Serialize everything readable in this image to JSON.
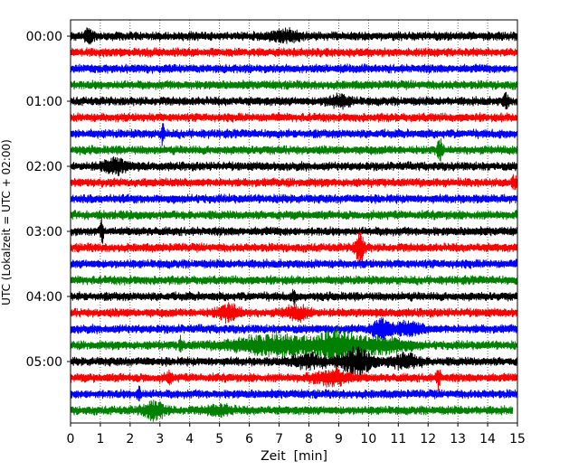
{
  "chart_data": {
    "type": "line",
    "chart_kind": "helicorder seismogram",
    "xlabel": "Zeit  [min]",
    "ylabel": "UTC (Lokalzeit = UTC + 02:00)",
    "xlim": [
      0,
      15
    ],
    "x_ticks": [
      0,
      1,
      2,
      3,
      4,
      5,
      6,
      7,
      8,
      9,
      10,
      11,
      12,
      13,
      14,
      15
    ],
    "x_grid": "dotted vertical at each minute",
    "row_interval_minutes": 15,
    "color_cycle": [
      "#000000",
      "#ff0000",
      "#0000ff",
      "#008000"
    ],
    "y_ticks": [
      {
        "label": "00:00",
        "row": 0
      },
      {
        "label": "01:00",
        "row": 4
      },
      {
        "label": "02:00",
        "row": 8
      },
      {
        "label": "03:00",
        "row": 12
      },
      {
        "label": "04:00",
        "row": 16
      },
      {
        "label": "05:00",
        "row": 20
      }
    ],
    "rows": [
      {
        "start": "00:00",
        "color": "#000000",
        "events": [
          {
            "t": 0.6,
            "amp": 0.45,
            "dur": 0.15
          },
          {
            "t": 7.2,
            "amp": 0.35,
            "dur": 0.5
          }
        ]
      },
      {
        "start": "00:15",
        "color": "#ff0000",
        "events": []
      },
      {
        "start": "00:30",
        "color": "#0000ff",
        "events": []
      },
      {
        "start": "00:45",
        "color": "#008000",
        "events": []
      },
      {
        "start": "01:00",
        "color": "#000000",
        "events": [
          {
            "t": 9.0,
            "amp": 0.35,
            "dur": 0.4
          },
          {
            "t": 14.6,
            "amp": 0.45,
            "dur": 0.1
          }
        ]
      },
      {
        "start": "01:15",
        "color": "#ff0000",
        "events": []
      },
      {
        "start": "01:30",
        "color": "#0000ff",
        "events": [
          {
            "t": 3.1,
            "amp": 0.8,
            "dur": 0.05
          }
        ]
      },
      {
        "start": "01:45",
        "color": "#008000",
        "events": [
          {
            "t": 12.4,
            "amp": 0.8,
            "dur": 0.08
          }
        ]
      },
      {
        "start": "02:00",
        "color": "#000000",
        "events": [
          {
            "t": 1.5,
            "amp": 0.5,
            "dur": 0.4
          }
        ]
      },
      {
        "start": "02:15",
        "color": "#ff0000",
        "events": [
          {
            "t": 14.9,
            "amp": 0.4,
            "dur": 0.1
          }
        ]
      },
      {
        "start": "02:30",
        "color": "#0000ff",
        "events": []
      },
      {
        "start": "02:45",
        "color": "#008000",
        "events": []
      },
      {
        "start": "03:00",
        "color": "#000000",
        "events": [
          {
            "t": 1.05,
            "amp": 1.0,
            "dur": 0.05
          }
        ]
      },
      {
        "start": "03:15",
        "color": "#ff0000",
        "events": [
          {
            "t": 9.7,
            "amp": 1.1,
            "dur": 0.15
          }
        ]
      },
      {
        "start": "03:30",
        "color": "#0000ff",
        "events": []
      },
      {
        "start": "03:45",
        "color": "#008000",
        "events": []
      },
      {
        "start": "04:00",
        "color": "#000000",
        "events": [
          {
            "t": 7.5,
            "amp": 0.5,
            "dur": 0.05
          }
        ]
      },
      {
        "start": "04:15",
        "color": "#ff0000",
        "events": [
          {
            "t": 5.3,
            "amp": 0.5,
            "dur": 0.4
          },
          {
            "t": 7.6,
            "amp": 0.45,
            "dur": 0.4
          }
        ]
      },
      {
        "start": "04:30",
        "color": "#0000ff",
        "events": [
          {
            "t": 10.4,
            "amp": 0.65,
            "dur": 0.3
          },
          {
            "t": 11.3,
            "amp": 0.4,
            "dur": 0.5
          }
        ]
      },
      {
        "start": "04:45",
        "color": "#008000",
        "events": [
          {
            "t": 3.7,
            "amp": 0.6,
            "dur": 0.05
          },
          {
            "t": 7.0,
            "amp": 0.65,
            "dur": 1.6
          },
          {
            "t": 9.0,
            "amp": 0.95,
            "dur": 0.6
          },
          {
            "t": 10.5,
            "amp": 0.5,
            "dur": 0.8
          }
        ]
      },
      {
        "start": "05:00",
        "color": "#000000",
        "events": [
          {
            "t": 9.6,
            "amp": 0.85,
            "dur": 0.5
          },
          {
            "t": 8.0,
            "amp": 0.4,
            "dur": 0.6
          },
          {
            "t": 11.2,
            "amp": 0.45,
            "dur": 0.5
          }
        ]
      },
      {
        "start": "05:15",
        "color": "#ff0000",
        "events": [
          {
            "t": 8.8,
            "amp": 0.5,
            "dur": 0.6
          },
          {
            "t": 12.35,
            "amp": 0.9,
            "dur": 0.06
          },
          {
            "t": 3.3,
            "amp": 0.35,
            "dur": 0.1
          }
        ]
      },
      {
        "start": "05:30",
        "color": "#0000ff",
        "events": [
          {
            "t": 2.3,
            "amp": 0.75,
            "dur": 0.05
          }
        ]
      },
      {
        "start": "05:45",
        "color": "#008000",
        "events": [
          {
            "t": 2.8,
            "amp": 0.6,
            "dur": 0.35
          },
          {
            "t": 5.0,
            "amp": 0.3,
            "dur": 0.4
          }
        ],
        "end": 14.85
      }
    ]
  }
}
